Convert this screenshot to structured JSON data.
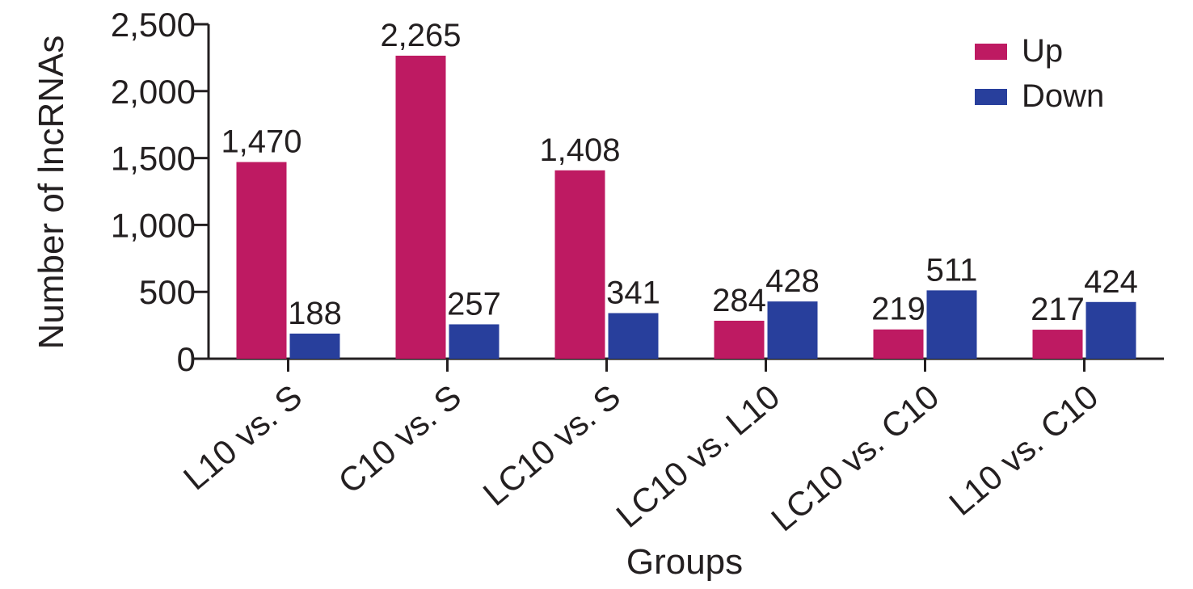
{
  "chart_data": {
    "type": "bar",
    "title": "",
    "xlabel": "Groups",
    "ylabel": "Number of lncRNAs",
    "ylim": [
      0,
      2500
    ],
    "yticks": [
      0,
      500,
      1000,
      1500,
      2000,
      2500
    ],
    "ytick_labels": [
      "0",
      "500",
      "1,000",
      "1,500",
      "2,000",
      "2,500"
    ],
    "categories": [
      "L10 vs. S",
      "C10 vs. S",
      "LC10 vs. S",
      "LC10 vs. L10",
      "LC10 vs. C10",
      "L10 vs. C10"
    ],
    "series": [
      {
        "name": "Up",
        "color": "#be1a62",
        "values": [
          1470,
          2265,
          1408,
          284,
          219,
          217
        ],
        "labels": [
          "1,470",
          "2,265",
          "1,408",
          "284",
          "219",
          "217"
        ]
      },
      {
        "name": "Down",
        "color": "#283f9c",
        "values": [
          188,
          257,
          341,
          428,
          511,
          424
        ],
        "labels": [
          "188",
          "257",
          "341",
          "428",
          "511",
          "424"
        ]
      }
    ],
    "legend_position": "top-right",
    "grid": false
  }
}
